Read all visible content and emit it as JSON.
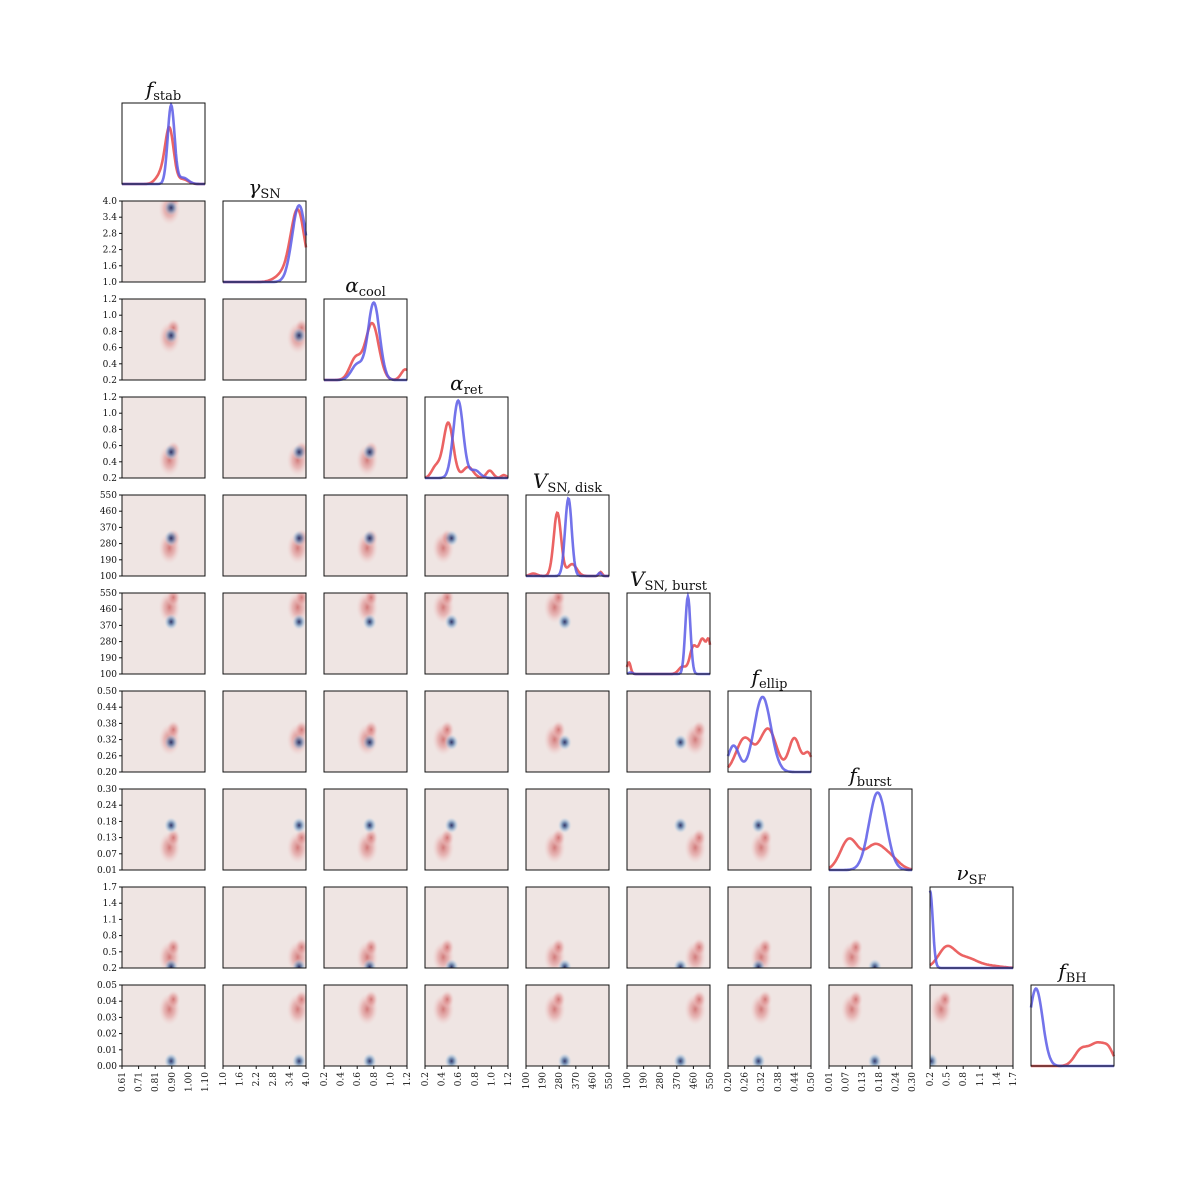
{
  "chart_data": {
    "type": "corner",
    "parameters": [
      {
        "sym": "f",
        "sub": "stab",
        "range": [
          0.61,
          1.1
        ],
        "ticks": [
          "0.61",
          "0.71",
          "0.81",
          "0.90",
          "1.00",
          "1.10"
        ]
      },
      {
        "sym": "γ",
        "sub": "SN",
        "range": [
          1.0,
          4.0
        ],
        "ticks": [
          "1.0",
          "1.6",
          "2.2",
          "2.8",
          "3.4",
          "4.0"
        ]
      },
      {
        "sym": "α",
        "sub": "cool",
        "range": [
          0.2,
          1.2
        ],
        "ticks": [
          "0.2",
          "0.4",
          "0.6",
          "0.8",
          "1.0",
          "1.2"
        ]
      },
      {
        "sym": "α",
        "sub": "ret",
        "range": [
          0.2,
          1.2
        ],
        "ticks": [
          "0.2",
          "0.4",
          "0.6",
          "0.8",
          "1.0",
          "1.2"
        ]
      },
      {
        "sym": "V",
        "sub": "SN, disk",
        "range": [
          100,
          550
        ],
        "ticks": [
          "100",
          "190",
          "280",
          "370",
          "460",
          "550"
        ]
      },
      {
        "sym": "V",
        "sub": "SN, burst",
        "range": [
          100,
          550
        ],
        "ticks": [
          "100",
          "190",
          "280",
          "370",
          "460",
          "550"
        ]
      },
      {
        "sym": "f",
        "sub": "ellip",
        "range": [
          0.2,
          0.5
        ],
        "ticks": [
          "0.20",
          "0.26",
          "0.32",
          "0.38",
          "0.44",
          "0.50"
        ]
      },
      {
        "sym": "f",
        "sub": "burst",
        "range": [
          0.01,
          0.3
        ],
        "ticks": [
          "0.01",
          "0.07",
          "0.13",
          "0.18",
          "0.24",
          "0.30"
        ]
      },
      {
        "sym": "ν",
        "sub": "SF",
        "range": [
          0.2,
          1.7
        ],
        "ticks": [
          "0.2",
          "0.5",
          "0.8",
          "1.1",
          "1.4",
          "1.7"
        ]
      },
      {
        "sym": "f",
        "sub": "BH",
        "range": [
          0.0,
          0.05
        ],
        "ticks": [
          "0.00",
          "0.01",
          "0.02",
          "0.03",
          "0.04",
          "0.05"
        ]
      }
    ],
    "series": [
      {
        "color": "#5a5ae6",
        "peaks": [
          {
            "mu": 0.9,
            "sigma": 0.018,
            "w": 1
          }
        ]
      },
      {
        "color": "#e84848",
        "peaks": []
      }
    ],
    "marginals": [
      {
        "blue": [
          {
            "mu": 0.9,
            "sigma": 0.02,
            "w": 1
          },
          {
            "mu": 0.97,
            "sigma": 0.03,
            "w": 0.08
          }
        ],
        "red": [
          {
            "mu": 0.89,
            "sigma": 0.025,
            "w": 0.7
          },
          {
            "mu": 0.84,
            "sigma": 0.03,
            "w": 0.12
          },
          {
            "mu": 0.97,
            "sigma": 0.03,
            "w": 0.06
          }
        ],
        "bmax": 1.0,
        "rmax": 0.72
      },
      {
        "blue": [
          {
            "mu": 3.75,
            "sigma": 0.25,
            "w": 1
          }
        ],
        "red": [
          {
            "mu": 3.7,
            "sigma": 0.25,
            "w": 0.9
          },
          {
            "mu": 3.2,
            "sigma": 0.3,
            "w": 0.1
          }
        ],
        "bmax": 0.97,
        "rmax": 0.92
      },
      {
        "blue": [
          {
            "mu": 0.8,
            "sigma": 0.07,
            "w": 1
          },
          {
            "mu": 0.6,
            "sigma": 0.07,
            "w": 0.2
          }
        ],
        "red": [
          {
            "mu": 0.78,
            "sigma": 0.08,
            "w": 0.8
          },
          {
            "mu": 0.58,
            "sigma": 0.07,
            "w": 0.3
          },
          {
            "mu": 1.18,
            "sigma": 0.05,
            "w": 0.15
          }
        ],
        "bmax": 0.98,
        "rmax": 0.72
      },
      {
        "blue": [
          {
            "mu": 0.6,
            "sigma": 0.06,
            "w": 1
          },
          {
            "mu": 0.8,
            "sigma": 0.06,
            "w": 0.1
          }
        ],
        "red": [
          {
            "mu": 0.48,
            "sigma": 0.06,
            "w": 0.75
          },
          {
            "mu": 0.33,
            "sigma": 0.05,
            "w": 0.15
          },
          {
            "mu": 0.72,
            "sigma": 0.06,
            "w": 0.15
          },
          {
            "mu": 0.98,
            "sigma": 0.04,
            "w": 0.1
          },
          {
            "mu": 1.15,
            "sigma": 0.03,
            "w": 0.04
          }
        ],
        "bmax": 0.98,
        "rmax": 0.7
      },
      {
        "blue": [
          {
            "mu": 330,
            "sigma": 18,
            "w": 1
          },
          {
            "mu": 500,
            "sigma": 8,
            "w": 0.04
          }
        ],
        "red": [
          {
            "mu": 270,
            "sigma": 20,
            "w": 0.8
          },
          {
            "mu": 350,
            "sigma": 25,
            "w": 0.15
          },
          {
            "mu": 505,
            "sigma": 8,
            "w": 0.05
          },
          {
            "mu": 140,
            "sigma": 20,
            "w": 0.03
          }
        ],
        "bmax": 0.98,
        "rmax": 0.8
      },
      {
        "blue": [
          {
            "mu": 430,
            "sigma": 14,
            "w": 1
          },
          {
            "mu": 120,
            "sigma": 10,
            "w": 0.02
          }
        ],
        "red": [
          {
            "mu": 460,
            "sigma": 20,
            "w": 0.3
          },
          {
            "mu": 510,
            "sigma": 20,
            "w": 0.38
          },
          {
            "mu": 545,
            "sigma": 12,
            "w": 0.3
          },
          {
            "mu": 110,
            "sigma": 10,
            "w": 0.13
          },
          {
            "mu": 400,
            "sigma": 20,
            "w": 0.08
          }
        ],
        "bmax": 0.98,
        "rmax": 0.45
      },
      {
        "blue": [
          {
            "mu": 0.325,
            "sigma": 0.03,
            "w": 1
          },
          {
            "mu": 0.22,
            "sigma": 0.02,
            "w": 0.35
          }
        ],
        "red": [
          {
            "mu": 0.345,
            "sigma": 0.03,
            "w": 0.7
          },
          {
            "mu": 0.26,
            "sigma": 0.03,
            "w": 0.55
          },
          {
            "mu": 0.44,
            "sigma": 0.02,
            "w": 0.55
          },
          {
            "mu": 0.49,
            "sigma": 0.015,
            "w": 0.3
          }
        ],
        "bmax": 0.95,
        "rmax": 0.55
      },
      {
        "blue": [
          {
            "mu": 0.18,
            "sigma": 0.03,
            "w": 1
          }
        ],
        "red": [
          {
            "mu": 0.08,
            "sigma": 0.03,
            "w": 0.5
          },
          {
            "mu": 0.17,
            "sigma": 0.035,
            "w": 0.4
          },
          {
            "mu": 0.23,
            "sigma": 0.03,
            "w": 0.15
          }
        ],
        "bmax": 0.98,
        "rmax": 0.4
      },
      {
        "blue": [
          {
            "mu": 0.2,
            "sigma": 0.05,
            "w": 1
          }
        ],
        "red": [
          {
            "mu": 0.5,
            "sigma": 0.15,
            "w": 0.5
          },
          {
            "mu": 0.85,
            "sigma": 0.2,
            "w": 0.25
          },
          {
            "mu": 1.3,
            "sigma": 0.2,
            "w": 0.05
          }
        ],
        "bmax": 0.98,
        "rmax": 0.28
      },
      {
        "blue": [
          {
            "mu": 0.003,
            "sigma": 0.004,
            "w": 1
          }
        ],
        "red": [
          {
            "mu": 0.03,
            "sigma": 0.004,
            "w": 0.2
          },
          {
            "mu": 0.04,
            "sigma": 0.005,
            "w": 0.3
          },
          {
            "mu": 0.047,
            "sigma": 0.003,
            "w": 0.15
          }
        ],
        "bmax": 0.98,
        "rmax": 0.3
      }
    ],
    "blobs_blue": [
      0.9,
      3.75,
      0.75,
      0.52,
      310,
      390,
      0.31,
      0.17,
      0.22,
      0.003
    ],
    "blobs_red": [
      0.89,
      3.7,
      0.72,
      0.42,
      255,
      470,
      0.32,
      0.09,
      0.4,
      0.035
    ]
  }
}
